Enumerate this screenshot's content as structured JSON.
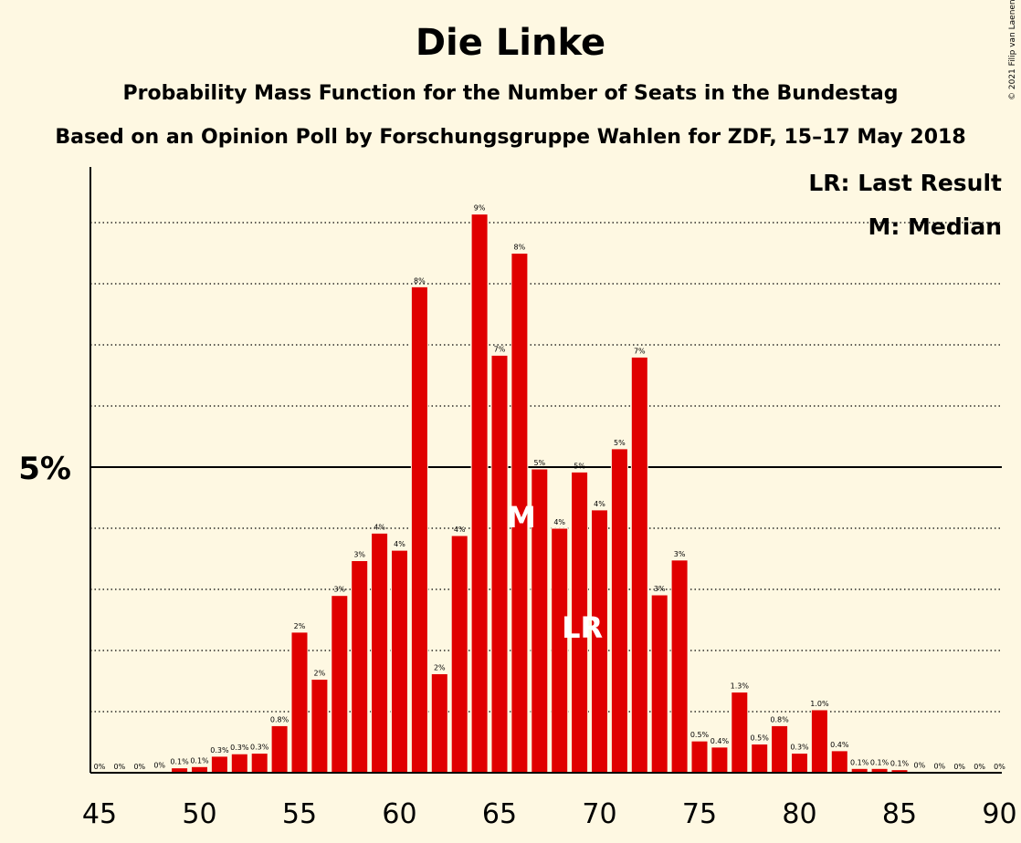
{
  "title": "Die Linke",
  "subtitle": "Probability Mass Function for the Number of Seats in the Bundestag",
  "subtitle2": "Based on an Opinion Poll by Forschungsgruppe Wahlen for ZDF, 15–17 May 2018",
  "copyright": "© 2021 Filip van Laenen",
  "legend": {
    "lr": "LR: Last Result",
    "m": "M: Median"
  },
  "colors": {
    "bar": "#e00000",
    "background": "#fef8e2"
  },
  "chart_data": {
    "type": "bar",
    "x": [
      45,
      46,
      47,
      48,
      49,
      50,
      51,
      52,
      53,
      54,
      55,
      56,
      57,
      58,
      59,
      60,
      61,
      62,
      63,
      64,
      65,
      66,
      67,
      68,
      69,
      70,
      71,
      72,
      73,
      74,
      75,
      76,
      77,
      78,
      79,
      80,
      81,
      82,
      83,
      84,
      85,
      86,
      87,
      88,
      89,
      90
    ],
    "values": [
      0,
      0,
      0,
      0.02,
      0.08,
      0.1,
      0.27,
      0.31,
      0.32,
      0.77,
      2.3,
      1.53,
      2.9,
      3.47,
      3.92,
      3.64,
      7.95,
      1.62,
      3.88,
      9.14,
      6.83,
      8.5,
      4.97,
      4.0,
      4.92,
      4.3,
      5.3,
      6.8,
      2.91,
      3.48,
      0.52,
      0.42,
      1.32,
      0.47,
      0.77,
      0.32,
      1.03,
      0.36,
      0.07,
      0.07,
      0.05,
      0.02,
      0.01,
      0,
      0,
      0
    ],
    "labels": [
      "0%",
      "0%",
      "0%",
      "0%",
      "0.1%",
      "0.1%",
      "0.3%",
      "0.3%",
      "0.3%",
      "0.8%",
      "2%",
      "2%",
      "3%",
      "3%",
      "4%",
      "4%",
      "8%",
      "2%",
      "4%",
      "9%",
      "7%",
      "8%",
      "5%",
      "4%",
      "5%",
      "4%",
      "5%",
      "7%",
      "3%",
      "3%",
      "0.5%",
      "0.4%",
      "1.3%",
      "0.5%",
      "0.8%",
      "0.3%",
      "1.0%",
      "0.4%",
      "0.1%",
      "0.1%",
      "0.1%",
      "0%",
      "0%",
      "0%",
      "0%",
      "0%"
    ],
    "xticks": [
      "45",
      "50",
      "55",
      "60",
      "65",
      "70",
      "75",
      "80",
      "85",
      "90"
    ],
    "ytick_label": "5%",
    "ylim": [
      0,
      10
    ],
    "grid": true,
    "median": 66,
    "median_label": "M",
    "last_result": 69,
    "last_result_label": "LR",
    "legend_position": "top-right"
  }
}
